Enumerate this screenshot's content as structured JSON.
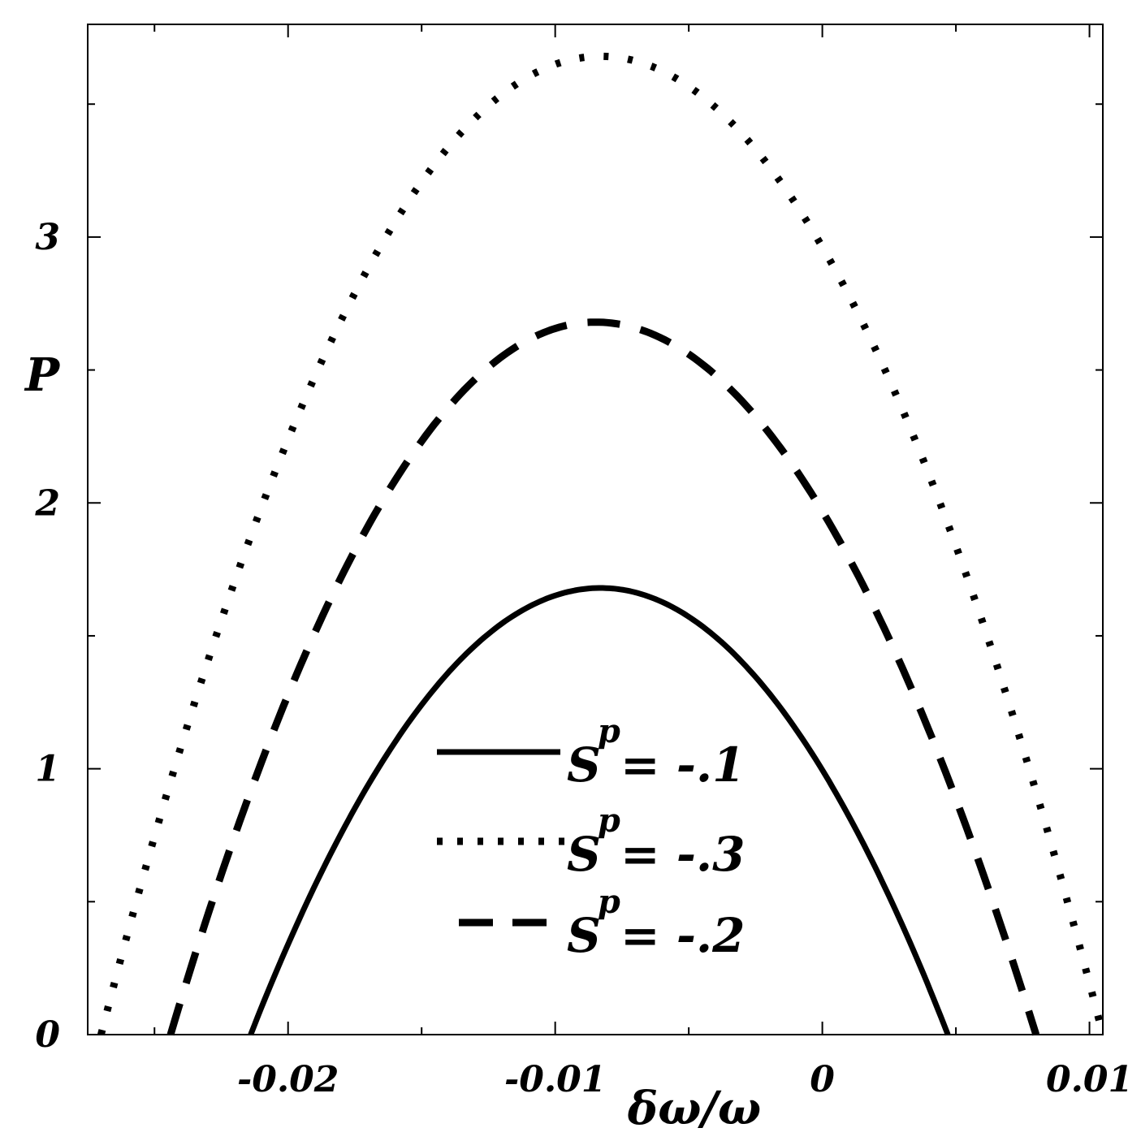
{
  "chart_data": {
    "type": "line",
    "xlabel": "δω/ω",
    "ylabel": "P",
    "xlim": [
      -0.0275,
      0.0105
    ],
    "ylim": [
      0,
      3.8
    ],
    "x_ticks": [
      {
        "value": -0.02,
        "label": "-0.02"
      },
      {
        "value": -0.01,
        "label": "-0.01"
      },
      {
        "value": 0,
        "label": "0"
      },
      {
        "value": 0.01,
        "label": "0.01"
      }
    ],
    "x_minor_ticks": [
      -0.025,
      -0.015,
      -0.005,
      0.005
    ],
    "y_ticks": [
      {
        "value": 0,
        "label": "0"
      },
      {
        "value": 1,
        "label": "1"
      },
      {
        "value": 2,
        "label": "2"
      },
      {
        "value": 3,
        "label": "3"
      }
    ],
    "y_minor_ticks": [
      0.5,
      1.5,
      2.5,
      3.5
    ],
    "grid": false,
    "legend_position": "center-bottom",
    "series": [
      {
        "name": "S_p = -.1",
        "legend": {
          "main": "S",
          "sub": "p",
          "rest": " = -.1"
        },
        "style": "solid",
        "color": "#000000",
        "peak_x": -0.0083,
        "peak_y": 1.68,
        "x_left": -0.0214,
        "x_right": 0.0047,
        "points": [
          [
            -0.0214,
            0
          ],
          [
            -0.02,
            0.32
          ],
          [
            -0.018,
            0.72
          ],
          [
            -0.016,
            1.06
          ],
          [
            -0.014,
            1.33
          ],
          [
            -0.012,
            1.52
          ],
          [
            -0.01,
            1.64
          ],
          [
            -0.0083,
            1.68
          ],
          [
            -0.006,
            1.63
          ],
          [
            -0.004,
            1.48
          ],
          [
            -0.002,
            1.24
          ],
          [
            0,
            0.92
          ],
          [
            0.002,
            0.52
          ],
          [
            0.004,
            0.1
          ],
          [
            0.0047,
            0
          ]
        ]
      },
      {
        "name": "S_p = -.3",
        "legend": {
          "main": "S",
          "sub": "p",
          "rest": " = -.3"
        },
        "style": "dotted",
        "color": "#000000",
        "peak_x": -0.0083,
        "peak_y": 3.68,
        "x_left": -0.027,
        "x_right": 0.0105,
        "points": [
          [
            -0.027,
            0.02
          ],
          [
            -0.025,
            0.85
          ],
          [
            -0.022,
            1.92
          ],
          [
            -0.019,
            2.74
          ],
          [
            -0.016,
            3.3
          ],
          [
            -0.013,
            3.6
          ],
          [
            -0.0083,
            3.68
          ],
          [
            -0.005,
            3.52
          ],
          [
            -0.002,
            3.05
          ],
          [
            0.001,
            2.35
          ],
          [
            0.004,
            1.45
          ],
          [
            0.007,
            0.8
          ],
          [
            0.0095,
            0.35
          ],
          [
            0.0105,
            0.1
          ]
        ]
      },
      {
        "name": "S_p = -.2",
        "legend": {
          "main": "S",
          "sub": "p",
          "rest": " = -.2"
        },
        "style": "dashed",
        "color": "#000000",
        "peak_x": -0.0085,
        "peak_y": 2.68,
        "x_left": -0.0244,
        "x_right": 0.008,
        "points": [
          [
            -0.0244,
            0.1
          ],
          [
            -0.022,
            0.95
          ],
          [
            -0.019,
            1.72
          ],
          [
            -0.016,
            2.23
          ],
          [
            -0.013,
            2.52
          ],
          [
            -0.0085,
            2.68
          ],
          [
            -0.005,
            2.53
          ],
          [
            -0.002,
            2.18
          ],
          [
            0.001,
            1.62
          ],
          [
            0.004,
            0.95
          ],
          [
            0.006,
            0.5
          ],
          [
            0.008,
            0
          ]
        ]
      }
    ]
  }
}
